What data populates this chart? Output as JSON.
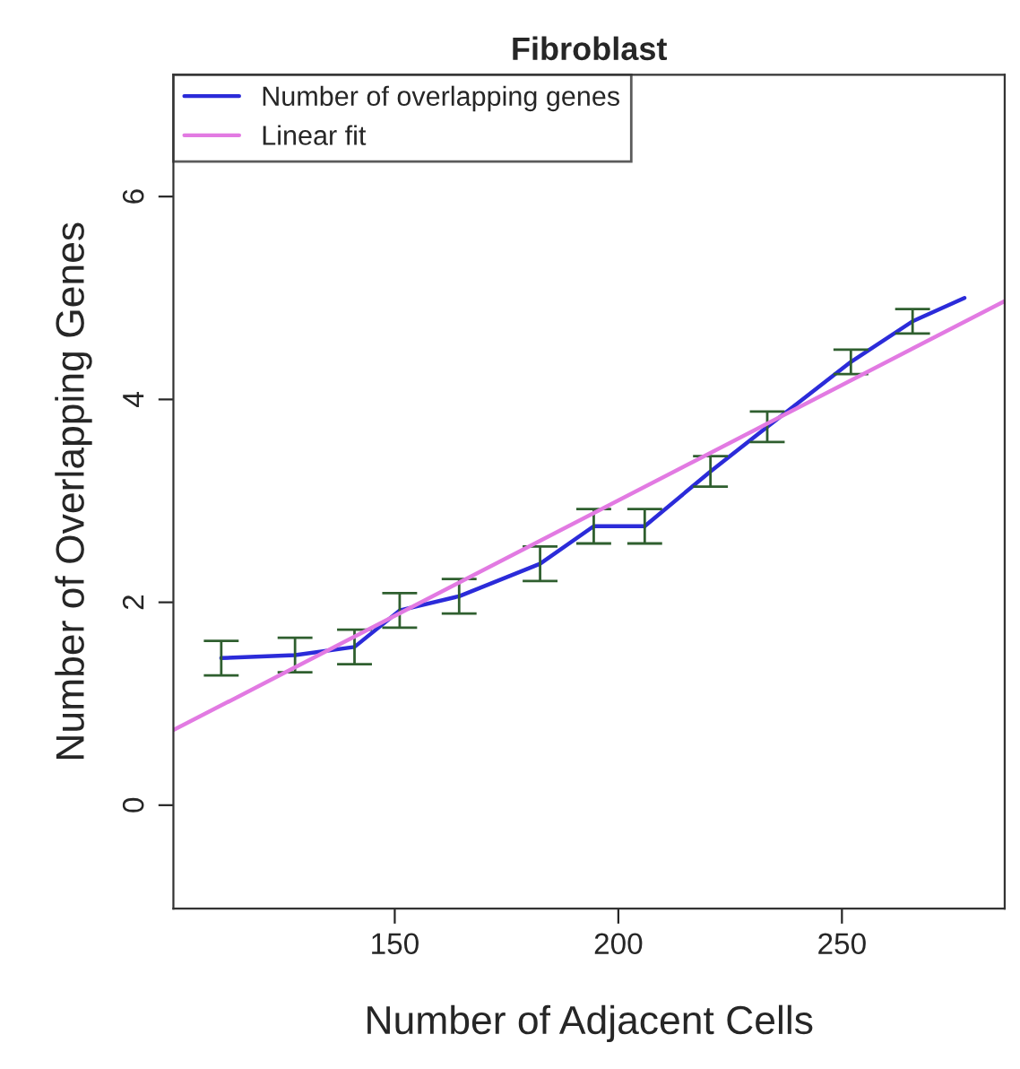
{
  "chart_data": {
    "type": "line",
    "title": "Fibroblast",
    "xlabel": "Number of Adjacent Cells",
    "ylabel": "Number of Overlapping Genes",
    "xlim": [
      100.5,
      286.4
    ],
    "ylim": [
      -1.02,
      7.2
    ],
    "xticks": [
      150,
      200,
      250
    ],
    "yticks": [
      0,
      2,
      4,
      6
    ],
    "grid": false,
    "legend": "top left",
    "series": [
      {
        "name": "Number of overlapping genes",
        "color": "#2b2bd9",
        "x": [
          111.2,
          127.7,
          141.0,
          151.1,
          164.4,
          182.5,
          194.5,
          205.9,
          220.6,
          233.3,
          252.0,
          265.8,
          277.4
        ],
        "values": [
          1.45,
          1.48,
          1.56,
          1.92,
          2.06,
          2.38,
          2.75,
          2.75,
          3.29,
          3.73,
          4.37,
          4.77,
          5.0
        ],
        "errors": [
          0.17,
          0.17,
          0.17,
          0.17,
          0.17,
          0.17,
          0.17,
          0.17,
          0.15,
          0.15,
          0.12,
          0.12,
          null
        ]
      },
      {
        "name": "Linear fit",
        "color": "#e27ae2",
        "x": [
          100.5,
          286.4
        ],
        "values": [
          0.74,
          4.97
        ]
      }
    ]
  }
}
